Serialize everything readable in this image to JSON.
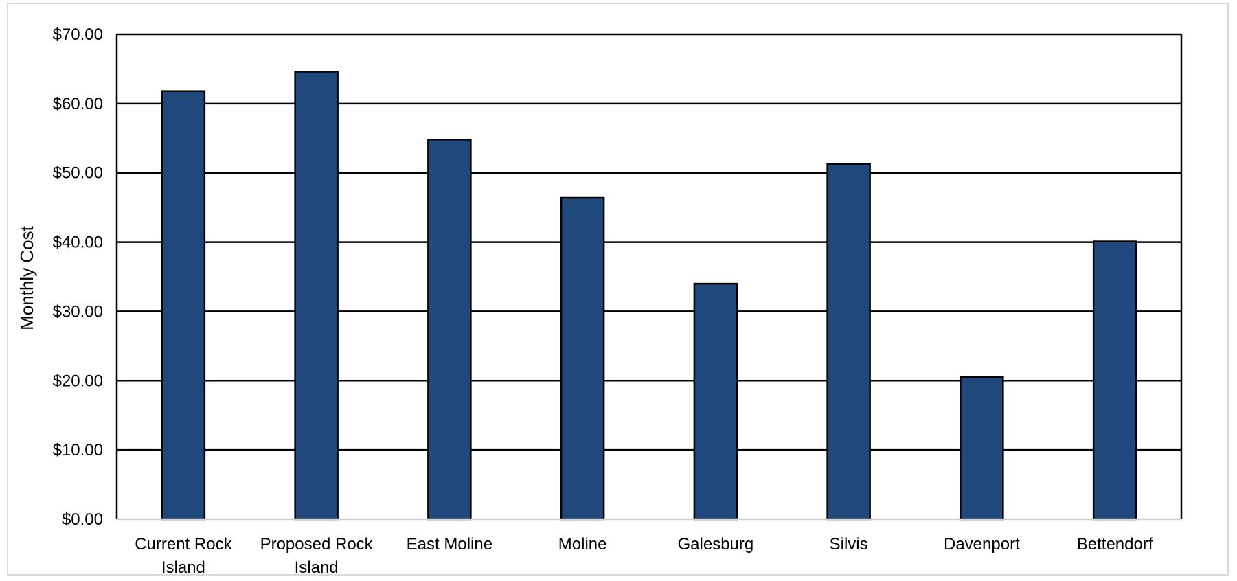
{
  "chart_data": {
    "type": "bar",
    "title": "",
    "xlabel": "",
    "ylabel": "Monthly Cost",
    "ylim": [
      0,
      70
    ],
    "yticks": [
      0,
      10,
      20,
      30,
      40,
      50,
      60,
      70
    ],
    "ytick_labels": [
      "$0.00",
      "$10.00",
      "$20.00",
      "$30.00",
      "$40.00",
      "$50.00",
      "$60.00",
      "$70.00"
    ],
    "categories": [
      "Current Rock Island",
      "Proposed Rock Island",
      "East Moline",
      "Moline",
      "Galesburg",
      "Silvis",
      "Davenport",
      "Bettendorf"
    ],
    "category_lines": [
      [
        "Current Rock",
        "Island"
      ],
      [
        "Proposed Rock",
        "Island"
      ],
      [
        "East Moline"
      ],
      [
        "Moline"
      ],
      [
        "Galesburg"
      ],
      [
        "Silvis"
      ],
      [
        "Davenport"
      ],
      [
        "Bettendorf"
      ]
    ],
    "values": [
      61.8,
      64.6,
      54.8,
      46.4,
      34.0,
      51.3,
      20.5,
      40.1
    ],
    "grid": true,
    "legend": "none",
    "colors": {
      "bar": "#1f497d",
      "bar_edge": "#000000",
      "grid": "#000000",
      "frame": "#d9d9d9"
    }
  }
}
